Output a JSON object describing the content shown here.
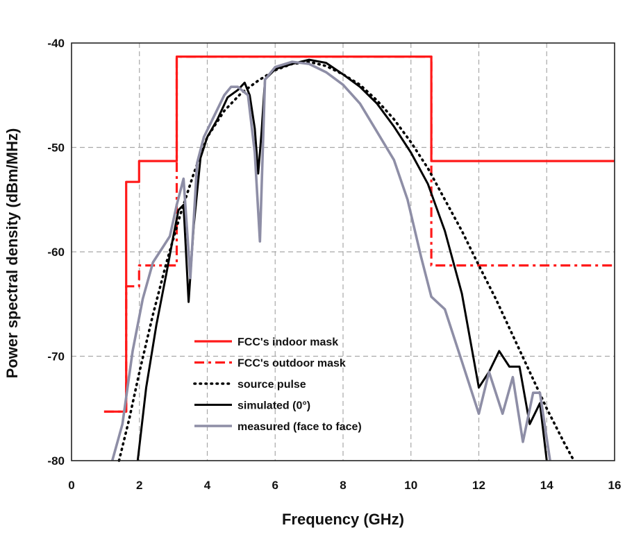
{
  "chart_data": {
    "type": "line",
    "title": "",
    "xlabel": "Frequency (GHz)",
    "ylabel": "Power spectral density (dBm/MHz)",
    "xlim": [
      0,
      16
    ],
    "ylim": [
      -80,
      -40
    ],
    "xticks": [
      "0",
      "2",
      "4",
      "6",
      "8",
      "10",
      "12",
      "14",
      "16"
    ],
    "yticks": [
      "-40",
      "-50",
      "-60",
      "-70",
      "-80"
    ],
    "xtick_values": [
      0,
      2,
      4,
      6,
      8,
      10,
      12,
      14,
      16
    ],
    "ytick_values": [
      -40,
      -50,
      -60,
      -70,
      -80
    ],
    "grid": true,
    "legend_position": "lower-center",
    "series": [
      {
        "name": "FCC's indoor mask",
        "color": "#ff1a1a",
        "style": "solid",
        "points": [
          [
            0.96,
            -75.3
          ],
          [
            1.61,
            -75.3
          ],
          [
            1.61,
            -53.3
          ],
          [
            1.99,
            -53.3
          ],
          [
            1.99,
            -51.3
          ],
          [
            3.1,
            -51.3
          ],
          [
            3.1,
            -41.3
          ],
          [
            10.6,
            -41.3
          ],
          [
            10.6,
            -51.3
          ],
          [
            16,
            -51.3
          ]
        ]
      },
      {
        "name": "FCC's outdoor mask",
        "color": "#ff1a1a",
        "style": "dashed",
        "points": [
          [
            0.96,
            -75.3
          ],
          [
            1.61,
            -75.3
          ],
          [
            1.61,
            -63.3
          ],
          [
            1.99,
            -63.3
          ],
          [
            1.99,
            -61.3
          ],
          [
            3.1,
            -61.3
          ],
          [
            3.1,
            -41.3
          ],
          [
            10.6,
            -41.3
          ],
          [
            10.6,
            -61.3
          ],
          [
            16,
            -61.3
          ]
        ]
      },
      {
        "name": "source pulse",
        "color": "#000000",
        "style": "dotted",
        "points": [
          [
            1.4,
            -80
          ],
          [
            1.7,
            -76
          ],
          [
            2.0,
            -71.5
          ],
          [
            2.4,
            -66
          ],
          [
            2.8,
            -61
          ],
          [
            3.2,
            -56.5
          ],
          [
            3.6,
            -52.5
          ],
          [
            4.0,
            -49
          ],
          [
            4.5,
            -46.5
          ],
          [
            5.0,
            -44.8
          ],
          [
            5.5,
            -43.6
          ],
          [
            6.0,
            -42.6
          ],
          [
            6.5,
            -42.0
          ],
          [
            7.0,
            -41.8
          ],
          [
            7.5,
            -42.2
          ],
          [
            8.0,
            -43.0
          ],
          [
            8.5,
            -44.0
          ],
          [
            9.0,
            -45.5
          ],
          [
            9.5,
            -47.3
          ],
          [
            10.0,
            -49.5
          ],
          [
            10.5,
            -52.0
          ],
          [
            11.0,
            -55.0
          ],
          [
            11.5,
            -58.0
          ],
          [
            12.0,
            -61.3
          ],
          [
            12.5,
            -64.5
          ],
          [
            13.0,
            -68.0
          ],
          [
            13.5,
            -71.5
          ],
          [
            14.0,
            -75.0
          ],
          [
            14.5,
            -78.2
          ],
          [
            14.8,
            -80
          ]
        ]
      },
      {
        "name": "simulated (0°)",
        "color": "#000000",
        "style": "solid",
        "points": [
          [
            1.95,
            -80
          ],
          [
            2.2,
            -73
          ],
          [
            2.5,
            -67
          ],
          [
            2.8,
            -62
          ],
          [
            3.0,
            -58.5
          ],
          [
            3.15,
            -56
          ],
          [
            3.3,
            -55.5
          ],
          [
            3.45,
            -64.8
          ],
          [
            3.6,
            -57.5
          ],
          [
            3.8,
            -51
          ],
          [
            4.0,
            -49
          ],
          [
            4.3,
            -47.3
          ],
          [
            4.6,
            -45.2
          ],
          [
            4.9,
            -44.5
          ],
          [
            5.1,
            -43.8
          ],
          [
            5.25,
            -45
          ],
          [
            5.4,
            -48.2
          ],
          [
            5.5,
            -52.5
          ],
          [
            5.6,
            -48.5
          ],
          [
            5.7,
            -43.5
          ],
          [
            6.0,
            -42.5
          ],
          [
            6.5,
            -42.0
          ],
          [
            7.0,
            -41.6
          ],
          [
            7.5,
            -41.9
          ],
          [
            8.0,
            -43.0
          ],
          [
            8.5,
            -44.2
          ],
          [
            9.0,
            -45.8
          ],
          [
            9.5,
            -48.0
          ],
          [
            10.0,
            -50.5
          ],
          [
            10.5,
            -53.5
          ],
          [
            11.0,
            -58.0
          ],
          [
            11.5,
            -64.0
          ],
          [
            12.0,
            -73.0
          ],
          [
            12.3,
            -71.5
          ],
          [
            12.6,
            -69.5
          ],
          [
            12.9,
            -71.0
          ],
          [
            13.2,
            -71.0
          ],
          [
            13.5,
            -76.5
          ],
          [
            13.8,
            -74.5
          ],
          [
            14.0,
            -80
          ]
        ]
      },
      {
        "name": "measured (face to face)",
        "color": "#8e8ea6",
        "style": "solid",
        "points": [
          [
            1.2,
            -80
          ],
          [
            1.5,
            -76.5
          ],
          [
            1.8,
            -69.5
          ],
          [
            2.1,
            -64.5
          ],
          [
            2.4,
            -61
          ],
          [
            2.7,
            -59.5
          ],
          [
            2.9,
            -58.5
          ],
          [
            3.1,
            -55.5
          ],
          [
            3.3,
            -53
          ],
          [
            3.5,
            -62.5
          ],
          [
            3.7,
            -51.5
          ],
          [
            3.9,
            -49
          ],
          [
            4.2,
            -47
          ],
          [
            4.5,
            -45
          ],
          [
            4.7,
            -44.2
          ],
          [
            4.9,
            -44.2
          ],
          [
            5.2,
            -45
          ],
          [
            5.4,
            -50.5
          ],
          [
            5.55,
            -59.0
          ],
          [
            5.7,
            -43.5
          ],
          [
            6.0,
            -42.3
          ],
          [
            6.5,
            -41.8
          ],
          [
            7.0,
            -42.0
          ],
          [
            7.5,
            -42.8
          ],
          [
            8.0,
            -44.0
          ],
          [
            8.5,
            -45.8
          ],
          [
            9.0,
            -48.5
          ],
          [
            9.5,
            -51.2
          ],
          [
            9.9,
            -55.0
          ],
          [
            10.3,
            -60.5
          ],
          [
            10.6,
            -64.3
          ],
          [
            11.0,
            -65.5
          ],
          [
            11.5,
            -70.5
          ],
          [
            12.0,
            -75.5
          ],
          [
            12.3,
            -71.5
          ],
          [
            12.7,
            -75.5
          ],
          [
            13.0,
            -72.0
          ],
          [
            13.3,
            -78.2
          ],
          [
            13.6,
            -73.5
          ],
          [
            13.8,
            -73.5
          ],
          [
            14.1,
            -80
          ]
        ]
      }
    ]
  }
}
